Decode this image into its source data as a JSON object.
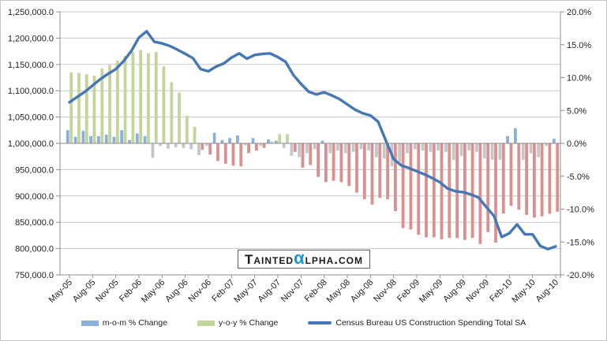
{
  "colors": {
    "line": "#4577b7",
    "mom_positive": "#8cb0dc",
    "mom_negative": "#c6c6ca",
    "yoy_positive": "#c3d59b",
    "yoy_negative": "#d9918f",
    "gridline": "#c8c8c8",
    "axis": "#8e8e8e",
    "watermark_alpha_blue": "#1d96d2"
  },
  "watermark": {
    "pre": "Tainted",
    "alpha": "α",
    "post": "lpha.com"
  },
  "legend": [
    {
      "label": "m-o-m % Change"
    },
    {
      "label": "y-o-y % Change"
    },
    {
      "label": "Census Bureau US Construction Spending Total SA"
    }
  ],
  "chart_data": {
    "type": "combo",
    "title": "",
    "xlabel": "",
    "ylabel_left": "",
    "ylabel_right": "",
    "grid": true,
    "legend_position": "bottom",
    "tick_every": 3,
    "x": [
      "May-05",
      "Jun-05",
      "Jul-05",
      "Aug-05",
      "Sep-05",
      "Oct-05",
      "Nov-05",
      "Dec-05",
      "Jan-06",
      "Feb-06",
      "Mar-06",
      "Apr-06",
      "May-06",
      "Jun-06",
      "Jul-06",
      "Aug-06",
      "Sep-06",
      "Oct-06",
      "Nov-06",
      "Dec-06",
      "Jan-07",
      "Feb-07",
      "Mar-07",
      "Apr-07",
      "May-07",
      "Jun-07",
      "Jul-07",
      "Aug-07",
      "Sep-07",
      "Oct-07",
      "Nov-07",
      "Dec-07",
      "Jan-08",
      "Feb-08",
      "Mar-08",
      "Apr-08",
      "May-08",
      "Jun-08",
      "Jul-08",
      "Aug-08",
      "Sep-08",
      "Oct-08",
      "Nov-08",
      "Dec-08",
      "Jan-09",
      "Feb-09",
      "Mar-09",
      "Apr-09",
      "May-09",
      "Jun-09",
      "Jul-09",
      "Aug-09",
      "Sep-09",
      "Oct-09",
      "Nov-09",
      "Dec-09",
      "Jan-10",
      "Feb-10",
      "Mar-10",
      "Apr-10",
      "May-10",
      "Jun-10",
      "Jul-10",
      "Aug-10"
    ],
    "x_tick_labels": [
      "May-05",
      "Aug-05",
      "Nov-05",
      "Feb-06",
      "May-06",
      "Aug-06",
      "Nov-06",
      "Feb-07",
      "May-07",
      "Aug-07",
      "Nov-07",
      "Feb-08",
      "May-08",
      "Aug-08",
      "Nov-08",
      "Feb-09",
      "May-09",
      "Aug-09",
      "Nov-09",
      "Feb-10",
      "May-10",
      "Aug-10"
    ],
    "left_axis": {
      "min": 750000,
      "max": 1250000,
      "step": 50000,
      "labels": [
        "1,250,000.0",
        "1,200,000.0",
        "1,150,000.0",
        "1,100,000.0",
        "1,050,000.0",
        "1,000,000.0",
        "950,000.0",
        "900,000.0",
        "850,000.0",
        "800,000.0",
        "750,000.0"
      ]
    },
    "right_axis": {
      "min": -20,
      "max": 20,
      "step": 5,
      "labels": [
        "20.0%",
        "15.0%",
        "10.0%",
        "5.0%",
        "0.0%",
        "-5.0%",
        "-10.0%",
        "-15.0%",
        "-20.0%"
      ]
    },
    "series": [
      {
        "name": "m-o-m % Change",
        "type": "bar",
        "axis": "right",
        "values": [
          2.0,
          1.0,
          1.9,
          1.1,
          1.1,
          1.3,
          1.0,
          2.0,
          0.5,
          1.5,
          1.1,
          -2.2,
          -0.4,
          -0.8,
          -0.6,
          -0.7,
          -0.9,
          -1.8,
          -0.4,
          1.6,
          0.5,
          0.8,
          1.2,
          -0.3,
          0.8,
          -0.4,
          0.6,
          0.4,
          -0.7,
          -1.9,
          -2.1,
          -1.5,
          -0.9,
          0.4,
          -1.5,
          -1.1,
          -1.5,
          -1.3,
          -0.9,
          -1.1,
          -2.1,
          -2.3,
          -3.5,
          -2.9,
          -1.5,
          -0.9,
          -1.1,
          -1.3,
          -1.1,
          -1.3,
          -2.5,
          -1.9,
          -1.1,
          -1.3,
          -2.3,
          -2.5,
          -2.5,
          1.1,
          2.3,
          -2.5,
          -1.5,
          -2.1,
          -0.4,
          0.7
        ]
      },
      {
        "name": "y-o-y % Change",
        "type": "bar",
        "axis": "right",
        "values": [
          10.8,
          10.7,
          10.5,
          10.3,
          11.4,
          11.9,
          12.6,
          13.3,
          13.9,
          14.2,
          13.7,
          13.9,
          11.7,
          9.3,
          7.7,
          4.2,
          2.5,
          -1.0,
          -1.7,
          -2.7,
          -3.1,
          -3.4,
          -3.5,
          -1.5,
          -1.1,
          -0.7,
          0.3,
          1.4,
          1.4,
          -1.3,
          -3.7,
          -3.3,
          -5.1,
          -5.9,
          -5.7,
          -5.9,
          -6.5,
          -7.5,
          -8.5,
          -9.3,
          -8.3,
          -8.5,
          -10.3,
          -12.9,
          -13.1,
          -13.9,
          -14.3,
          -14.3,
          -14.6,
          -14.4,
          -14.4,
          -14.7,
          -14.4,
          -15.3,
          -13.5,
          -15.1,
          -10.7,
          -9.5,
          -10.1,
          -10.9,
          -11.3,
          -11.1,
          -10.7,
          -10.4
        ]
      },
      {
        "name": "Census Bureau US Construction Spending Total SA",
        "type": "line",
        "axis": "left",
        "values": [
          1078000,
          1088000,
          1098000,
          1110000,
          1122000,
          1132000,
          1141000,
          1156000,
          1175000,
          1201000,
          1213000,
          1193000,
          1190000,
          1185000,
          1178000,
          1170000,
          1162000,
          1141000,
          1137000,
          1146000,
          1152000,
          1163000,
          1171000,
          1161000,
          1168000,
          1170000,
          1171000,
          1164000,
          1155000,
          1130000,
          1113000,
          1098000,
          1093000,
          1097000,
          1091000,
          1084000,
          1074000,
          1064000,
          1057000,
          1053000,
          1041000,
          1005000,
          970000,
          958000,
          953000,
          947000,
          941000,
          934000,
          926000,
          914000,
          909000,
          907000,
          903000,
          897000,
          879000,
          862000,
          822000,
          829000,
          846000,
          827000,
          827000,
          805000,
          799000,
          804000
        ]
      }
    ]
  }
}
